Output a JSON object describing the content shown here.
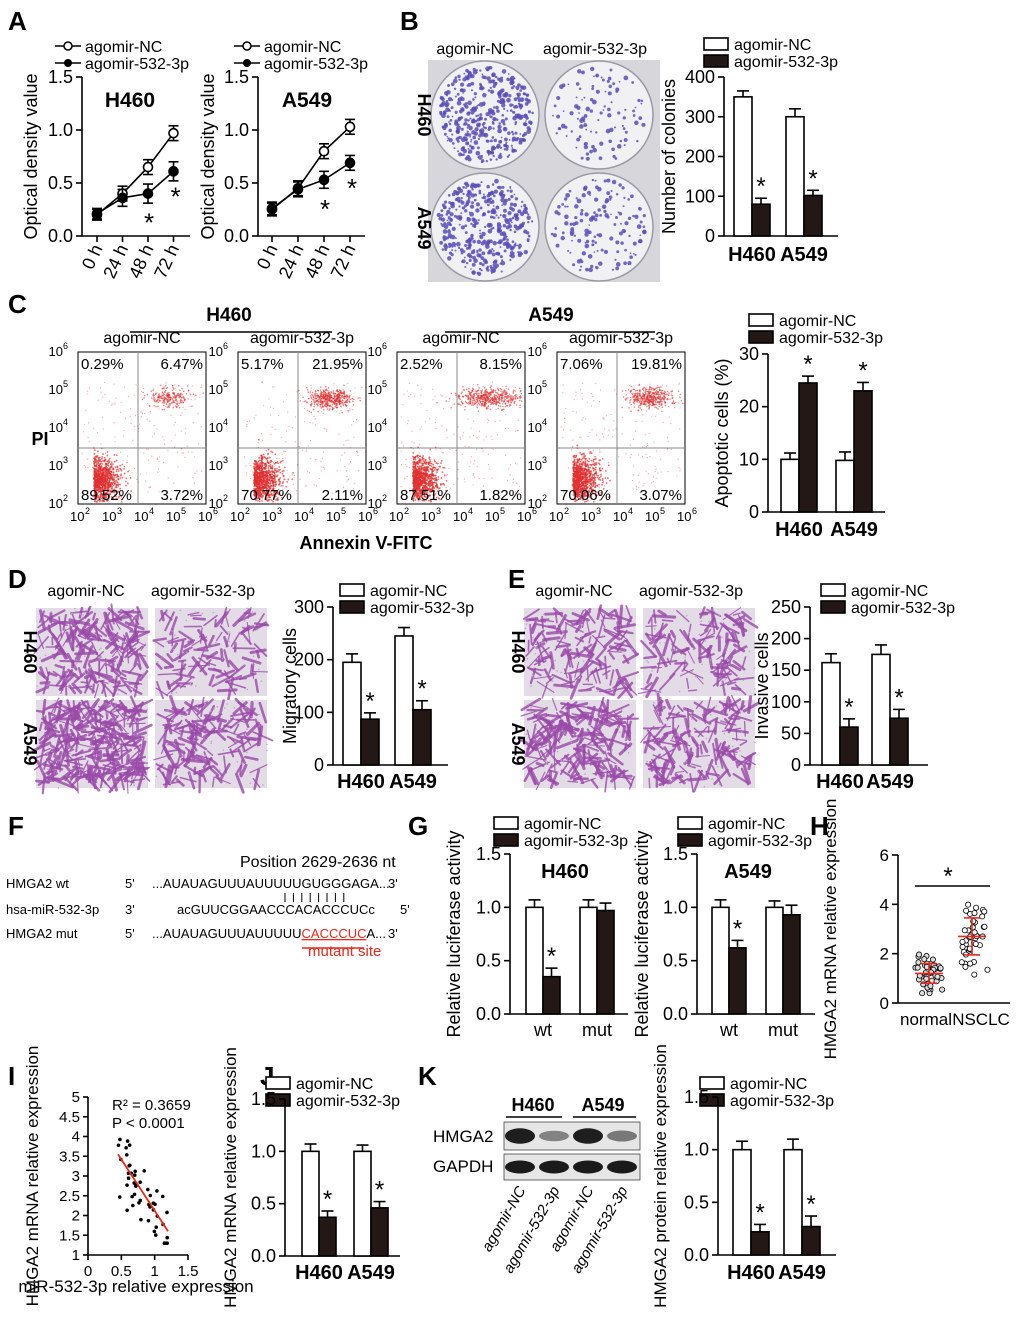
{
  "panel_letters": [
    "A",
    "B",
    "C",
    "D",
    "E",
    "F",
    "G",
    "H",
    "I",
    "J",
    "K"
  ],
  "colors": {
    "stroke": "#000000",
    "filled_bar": "#231815",
    "red": "#e8291c",
    "dot_red": "#e03030",
    "crystal_violet": "#5a4fb8",
    "membrane_purple": "#9a4aa8"
  },
  "legend": {
    "nc": "agomir-NC",
    "ag": "agomir-532-3p"
  },
  "cells": {
    "h460": "H460",
    "a549": "A549"
  },
  "chart_data": [
    {
      "panel": "A",
      "type": "line",
      "title": "H460",
      "ylabel": "Optical density value",
      "categories": [
        "0 h",
        "24 h",
        "48 h",
        "72 h"
      ],
      "ylim": [
        0,
        1.5
      ],
      "yticks": [
        "0.0",
        "0.5",
        "1.0",
        "1.5"
      ],
      "series": [
        {
          "name": "agomir-NC",
          "values": [
            0.2,
            0.4,
            0.65,
            0.97
          ],
          "err": [
            0.05,
            0.07,
            0.07,
            0.07
          ]
        },
        {
          "name": "agomir-532-3p",
          "values": [
            0.21,
            0.36,
            0.4,
            0.61
          ],
          "err": [
            0.05,
            0.08,
            0.09,
            0.09
          ]
        }
      ],
      "annotations": [
        "*",
        "*"
      ]
    },
    {
      "panel": "A",
      "type": "line",
      "title": "A549",
      "ylabel": "Optical density value",
      "categories": [
        "0 h",
        "24 h",
        "48 h",
        "72 h"
      ],
      "ylim": [
        0,
        1.5
      ],
      "yticks": [
        "0.0",
        "0.5",
        "1.0",
        "1.5"
      ],
      "series": [
        {
          "name": "agomir-NC",
          "values": [
            0.25,
            0.45,
            0.8,
            1.03
          ],
          "err": [
            0.06,
            0.07,
            0.07,
            0.07
          ]
        },
        {
          "name": "agomir-532-3p",
          "values": [
            0.26,
            0.44,
            0.53,
            0.69
          ],
          "err": [
            0.06,
            0.07,
            0.08,
            0.07
          ]
        }
      ],
      "annotations": [
        "*",
        "*"
      ]
    },
    {
      "panel": "B",
      "type": "bar",
      "ylabel": "Number of colonies",
      "categories": [
        "H460",
        "A549"
      ],
      "ylim": [
        0,
        400
      ],
      "yticks": [
        "0",
        "100",
        "200",
        "300",
        "400"
      ],
      "series": [
        {
          "name": "agomir-NC",
          "values": [
            350,
            300
          ],
          "err": [
            15,
            20
          ]
        },
        {
          "name": "agomir-532-3p",
          "values": [
            80,
            102
          ],
          "err": [
            15,
            13
          ]
        }
      ],
      "annotations": [
        "*",
        "*"
      ]
    },
    {
      "panel": "C",
      "type": "bar",
      "ylabel": "Apoptotic cells (%)",
      "categories": [
        "H460",
        "A549"
      ],
      "ylim": [
        0,
        30
      ],
      "yticks": [
        "0",
        "10",
        "20",
        "30"
      ],
      "series": [
        {
          "name": "agomir-NC",
          "values": [
            10,
            9.8
          ],
          "err": [
            1.2,
            1.6
          ]
        },
        {
          "name": "agomir-532-3p",
          "values": [
            24.5,
            23
          ],
          "err": [
            1.3,
            1.6
          ]
        }
      ],
      "annotations": [
        "*",
        "*"
      ]
    },
    {
      "panel": "D",
      "type": "bar",
      "ylabel": "Migratory cells",
      "categories": [
        "H460",
        "A549"
      ],
      "ylim": [
        0,
        300
      ],
      "yticks": [
        "0",
        "100",
        "200",
        "300"
      ],
      "series": [
        {
          "name": "agomir-NC",
          "values": [
            195,
            245
          ],
          "err": [
            16,
            16
          ]
        },
        {
          "name": "agomir-532-3p",
          "values": [
            87,
            105
          ],
          "err": [
            12,
            17
          ]
        }
      ],
      "annotations": [
        "*",
        "*"
      ]
    },
    {
      "panel": "E",
      "type": "bar",
      "ylabel": "Invasive cells",
      "categories": [
        "H460",
        "A549"
      ],
      "ylim": [
        0,
        250
      ],
      "yticks": [
        "0",
        "50",
        "100",
        "150",
        "200",
        "250"
      ],
      "series": [
        {
          "name": "agomir-NC",
          "values": [
            162,
            175
          ],
          "err": [
            14,
            15
          ]
        },
        {
          "name": "agomir-532-3p",
          "values": [
            60,
            74
          ],
          "err": [
            13,
            14
          ]
        }
      ],
      "annotations": [
        "*",
        "*"
      ]
    },
    {
      "panel": "G",
      "type": "bar",
      "title": "H460",
      "ylabel": "Relative luciferase activity",
      "categories": [
        "wt",
        "mut"
      ],
      "ylim": [
        0,
        1.5
      ],
      "yticks": [
        "0.0",
        "0.5",
        "1.0",
        "1.5"
      ],
      "series": [
        {
          "name": "agomir-NC",
          "values": [
            1.0,
            1.0
          ],
          "err": [
            0.07,
            0.07
          ]
        },
        {
          "name": "agomir-532-3p",
          "values": [
            0.35,
            0.97
          ],
          "err": [
            0.08,
            0.07
          ]
        }
      ],
      "annotations": [
        "*"
      ]
    },
    {
      "panel": "G",
      "type": "bar",
      "title": "A549",
      "ylabel": "Relative luciferase activity",
      "categories": [
        "wt",
        "mut"
      ],
      "ylim": [
        0,
        1.5
      ],
      "yticks": [
        "0.0",
        "0.5",
        "1.0",
        "1.5"
      ],
      "series": [
        {
          "name": "agomir-NC",
          "values": [
            1.0,
            1.0
          ],
          "err": [
            0.07,
            0.06
          ]
        },
        {
          "name": "agomir-532-3p",
          "values": [
            0.62,
            0.93
          ],
          "err": [
            0.07,
            0.09
          ]
        }
      ],
      "annotations": [
        "*"
      ]
    },
    {
      "panel": "H",
      "type": "scatter",
      "ylabel": "HMGA2 mRNA relative expression",
      "categories": [
        "normal",
        "NSCLC"
      ],
      "ylim": [
        0,
        6
      ],
      "yticks": [
        "0",
        "2",
        "4",
        "6"
      ],
      "groups": [
        {
          "name": "normal",
          "mean": 1.2,
          "sd": 0.4,
          "n": 45,
          "min": 0.4,
          "max": 2.2
        },
        {
          "name": "NSCLC",
          "mean": 2.7,
          "sd": 0.75,
          "n": 45,
          "min": 1.0,
          "max": 4.2
        }
      ],
      "annotations": [
        "*"
      ]
    },
    {
      "panel": "I",
      "type": "scatter",
      "xlabel": "miR-532-3p relative expression",
      "ylabel": "HMGA2 mRNA relative expression",
      "xlim": [
        0,
        1.5
      ],
      "ylim": [
        1,
        5
      ],
      "xticks": [
        "0",
        "0.5",
        "1",
        "1.5"
      ],
      "yticks": [
        "1",
        "1.5",
        "2",
        "2.5",
        "3",
        "3.5",
        "4",
        "4.5",
        "5"
      ],
      "n": 50,
      "x_range": [
        0.45,
        1.2
      ],
      "y_range": [
        1.3,
        4.5
      ],
      "fit": {
        "x0": 0.45,
        "y0": 3.55,
        "x1": 1.2,
        "y1": 1.6
      },
      "r2_text": "R² = 0.3659",
      "p_text": "P < 0.0001"
    },
    {
      "panel": "J",
      "type": "bar",
      "ylabel": "HMGA2 mRNA relative expression",
      "categories": [
        "H460",
        "A549"
      ],
      "ylim": [
        0,
        1.5
      ],
      "yticks": [
        "0.0",
        "0.5",
        "1.0",
        "1.5"
      ],
      "series": [
        {
          "name": "agomir-NC",
          "values": [
            1.0,
            1.0
          ],
          "err": [
            0.07,
            0.06
          ]
        },
        {
          "name": "agomir-532-3p",
          "values": [
            0.37,
            0.46
          ],
          "err": [
            0.06,
            0.06
          ]
        }
      ],
      "annotations": [
        "*",
        "*"
      ]
    },
    {
      "panel": "K",
      "type": "bar",
      "ylabel": "HMGA2 protein relative expression",
      "categories": [
        "H460",
        "A549"
      ],
      "ylim": [
        0,
        1.5
      ],
      "yticks": [
        "0.0",
        "0.5",
        "1.0",
        "1.5"
      ],
      "series": [
        {
          "name": "agomir-NC",
          "values": [
            1.0,
            1.0
          ],
          "err": [
            0.08,
            0.1
          ]
        },
        {
          "name": "agomir-532-3p",
          "values": [
            0.22,
            0.27
          ],
          "err": [
            0.07,
            0.1
          ]
        }
      ],
      "annotations": [
        "*",
        "*"
      ]
    }
  ],
  "colony": {
    "rows": [
      "H460",
      "A549"
    ],
    "cols": [
      "agomir-NC",
      "agomir-532-3p"
    ],
    "density": [
      [
        420,
        110
      ],
      [
        400,
        150
      ]
    ]
  },
  "flow": {
    "group_labels": [
      "H460",
      "A549"
    ],
    "plot_labels": [
      "agomir-NC",
      "agomir-532-3p",
      "agomir-NC",
      "agomir-532-3p"
    ],
    "xlabel": "Annexin V-FITC",
    "ylabel": "PI",
    "tick_exponents": [
      "2",
      "3",
      "4",
      "5",
      "6"
    ],
    "quadrants": [
      {
        "ul": "0.29%",
        "ur": "6.47%",
        "ll": "89.52%",
        "lr": "3.72%"
      },
      {
        "ul": "5.17%",
        "ur": "21.95%",
        "ll": "70.77%",
        "lr": "2.11%"
      },
      {
        "ul": "2.52%",
        "ur": "8.15%",
        "ll": "87.51%",
        "lr": "1.82%"
      },
      {
        "ul": "7.06%",
        "ur": "19.81%",
        "ll": "70.06%",
        "lr": "3.07%"
      }
    ]
  },
  "transwell": {
    "cols": [
      "agomir-NC",
      "agomir-532-3p"
    ],
    "rows": [
      "H460",
      "A549"
    ]
  },
  "seq": {
    "position": "Position 2629-2636 nt",
    "rows": [
      {
        "name": "HMGA2 wt",
        "p5": "5'",
        "pre": "...AUAUAGUUUAUUUUU",
        "site": "GUGGGAGA",
        "post": "...",
        "p3": "3'"
      },
      {
        "name": "hsa-miR-532-3p",
        "p5": "3'",
        "pre": "acGUUCGGAACCCA",
        "site": "CACCCUC",
        "post": "c",
        "p3": "5'"
      },
      {
        "name": "HMGA2 mut",
        "p5": "5'",
        "pre": "...AUAUAGUUUAUUUUU",
        "site": "CACCCUC",
        "post": "A...",
        "p3": "3'"
      }
    ],
    "mutant_label": "mutant site"
  },
  "western": {
    "groups": [
      "H460",
      "A549"
    ],
    "bands": [
      "HMGA2",
      "GAPDH"
    ],
    "lanes": [
      "agomir-NC",
      "agomir-532-3p",
      "agomir-NC",
      "agomir-532-3p"
    ],
    "hmga2_intensity": [
      0.95,
      0.45,
      0.95,
      0.5
    ]
  }
}
